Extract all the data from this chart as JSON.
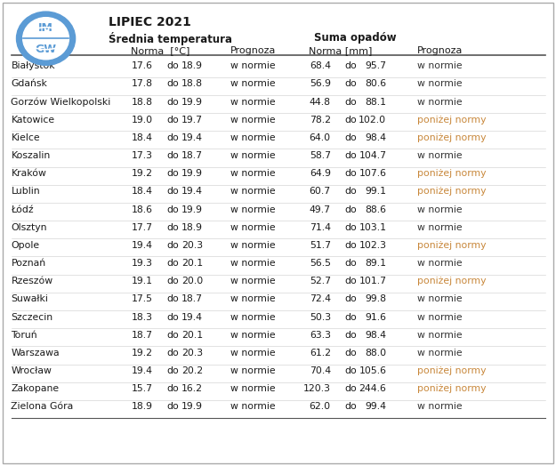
{
  "title": "LIPIEC 2021",
  "section_headers": [
    "Średnia temperatura",
    "Suma opadów"
  ],
  "cities": [
    "Białystok",
    "Gdańsk",
    "Gorzów Wielkopolski",
    "Katowice",
    "Kielce",
    "Koszalin",
    "Kraków",
    "Lublin",
    "Łódź",
    "Olsztyn",
    "Opole",
    "Poznań",
    "Rzeszów",
    "Suwałki",
    "Szczecin",
    "Toruń",
    "Warszawa",
    "Wrocław",
    "Zakopane",
    "Zielona Góra"
  ],
  "temp_norm_low": [
    17.6,
    17.8,
    18.8,
    19.0,
    18.4,
    17.3,
    19.2,
    18.4,
    18.6,
    17.7,
    19.4,
    19.3,
    19.1,
    17.5,
    18.3,
    18.7,
    19.2,
    19.4,
    15.7,
    18.9
  ],
  "temp_norm_high": [
    18.9,
    18.8,
    19.9,
    19.7,
    19.4,
    18.7,
    19.9,
    19.4,
    19.9,
    18.9,
    20.3,
    20.1,
    20.0,
    18.7,
    19.4,
    20.1,
    20.3,
    20.2,
    16.2,
    19.9
  ],
  "temp_prognoza": [
    "w normie",
    "w normie",
    "w normie",
    "w normie",
    "w normie",
    "w normie",
    "w normie",
    "w normie",
    "w normie",
    "w normie",
    "w normie",
    "w normie",
    "w normie",
    "w normie",
    "w normie",
    "w normie",
    "w normie",
    "w normie",
    "w normie",
    "w normie"
  ],
  "precip_norm_low": [
    68.4,
    56.9,
    44.8,
    78.2,
    64.0,
    58.7,
    64.9,
    60.7,
    49.7,
    71.4,
    51.7,
    56.5,
    52.7,
    72.4,
    50.3,
    63.3,
    61.2,
    70.4,
    120.3,
    62.0
  ],
  "precip_norm_high": [
    95.7,
    80.6,
    88.1,
    102.0,
    98.4,
    104.7,
    107.6,
    99.1,
    88.6,
    103.1,
    102.3,
    89.1,
    101.7,
    99.8,
    91.6,
    98.4,
    88.0,
    105.6,
    244.6,
    99.4
  ],
  "precip_prognoza": [
    "w normie",
    "w normie",
    "w normie",
    "poniżej normy",
    "poniżej normy",
    "w normie",
    "poniżej normy",
    "poniżej normy",
    "w normie",
    "w normie",
    "poniżej normy",
    "w normie",
    "poniżej normy",
    "w normie",
    "w normie",
    "w normie",
    "w normie",
    "poniżej normy",
    "poniżej normy",
    "w normie"
  ],
  "color_normie": "#333333",
  "color_ponizej": "#c8873a",
  "bg_color": "#ffffff",
  "header_line_color": "#555555",
  "logo_blue": "#5b9bd5"
}
